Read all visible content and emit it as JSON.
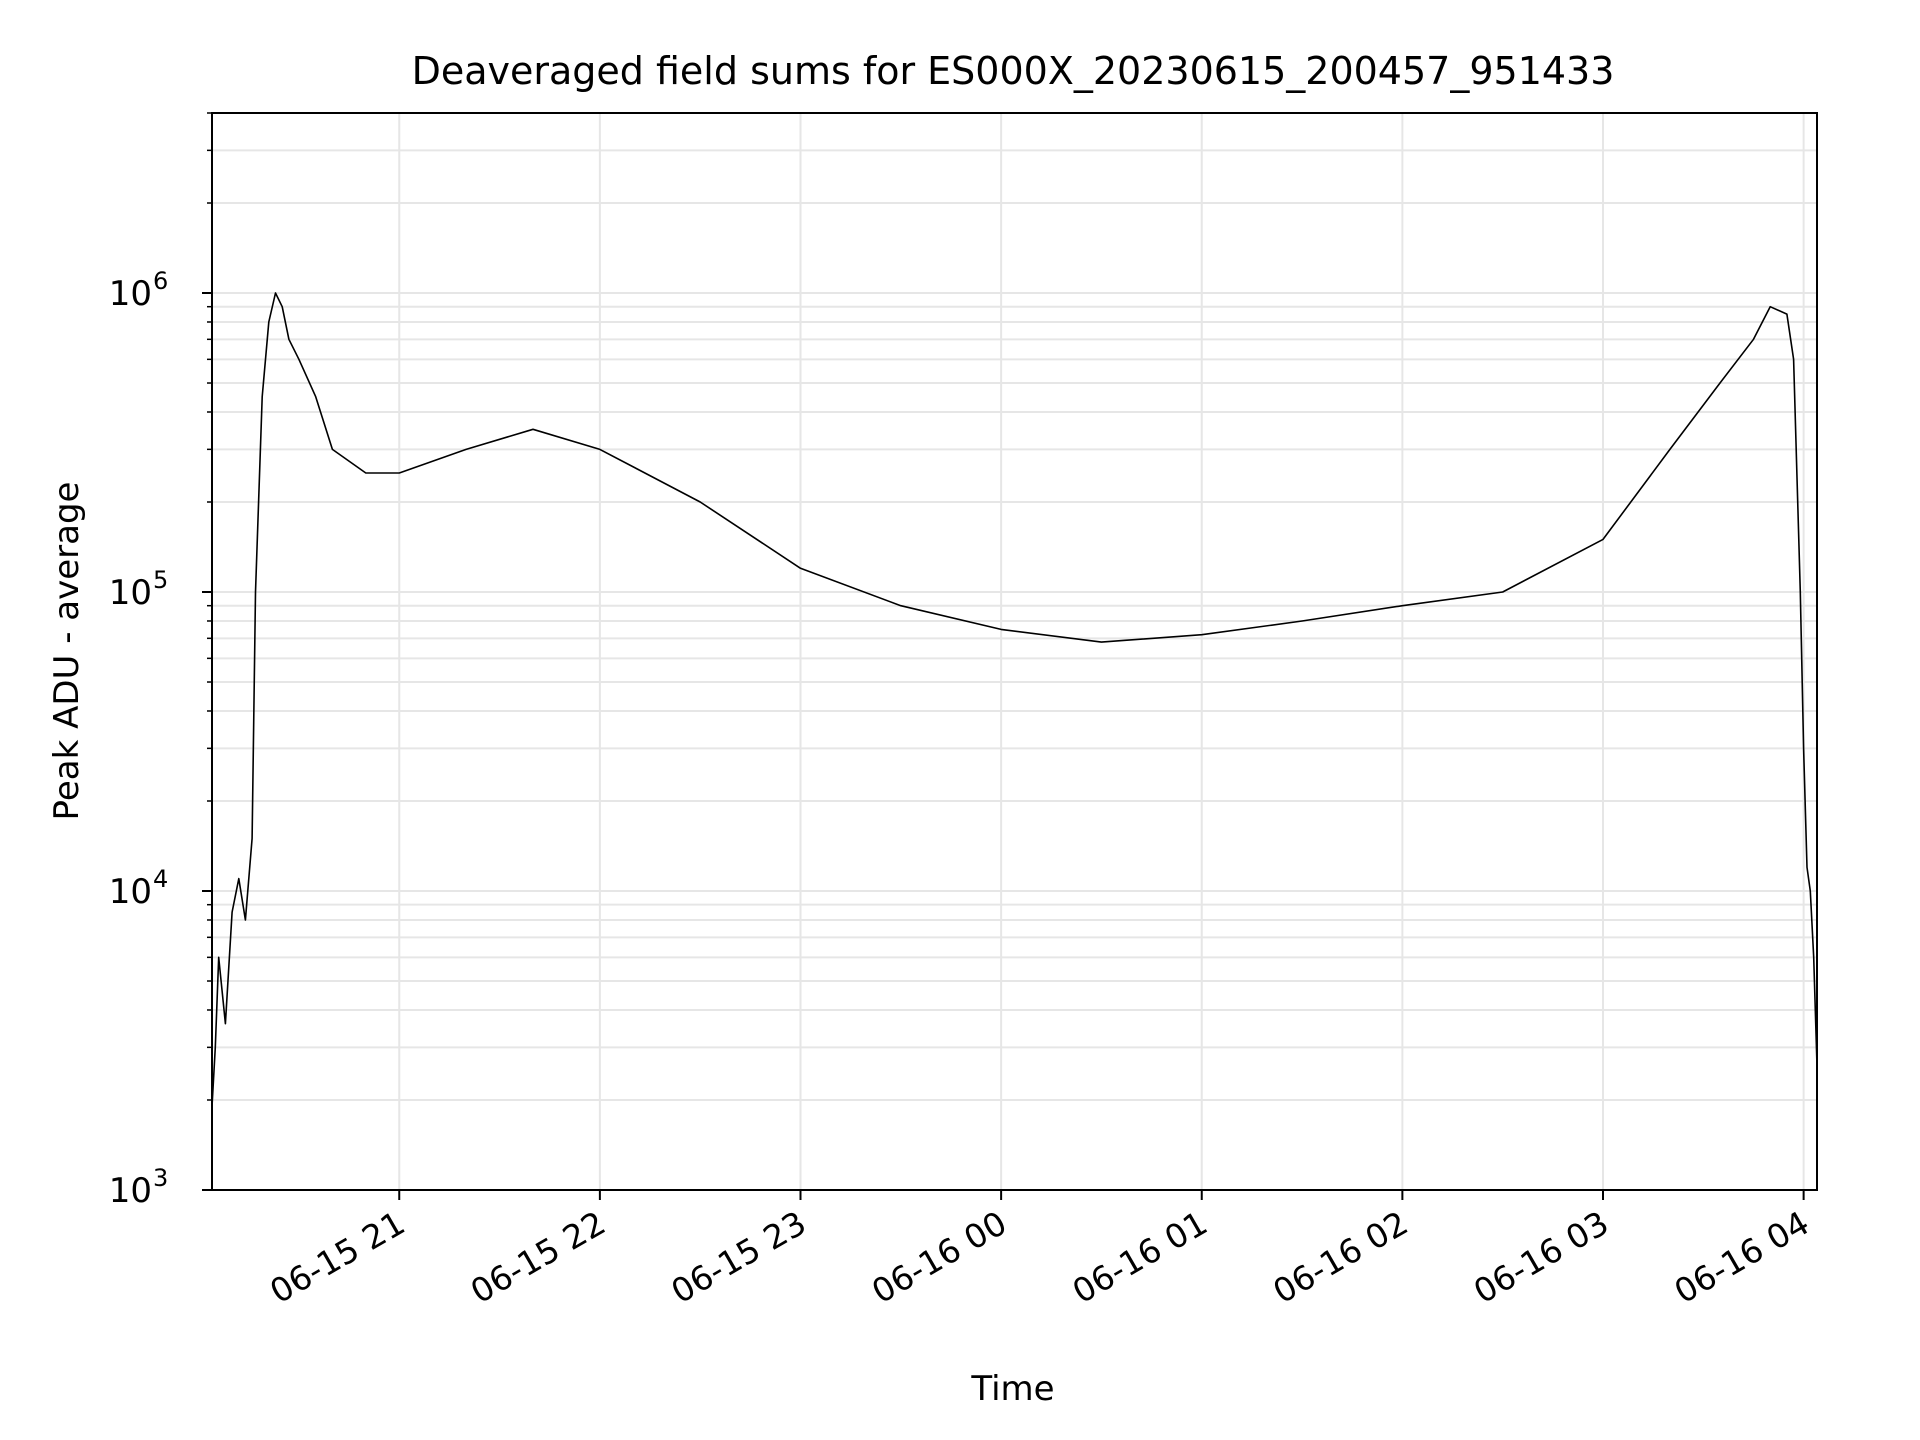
{
  "chart_data": {
    "type": "line",
    "title": "Deaveraged field sums for ES000X_20230615_200457_951433",
    "xlabel": "Time",
    "ylabel": "Peak ADU - average",
    "x_ticks": [
      "06-15 21",
      "06-15 22",
      "06-15 23",
      "06-16 00",
      "06-16 01",
      "06-16 02",
      "06-16 03",
      "06-16 04"
    ],
    "x_tick_times": [
      "2023-06-15 21:00",
      "2023-06-15 22:00",
      "2023-06-15 23:00",
      "2023-06-16 00:00",
      "2023-06-16 01:00",
      "2023-06-16 02:00",
      "2023-06-16 03:00",
      "2023-06-16 04:00"
    ],
    "xlim": [
      "2023-06-15 20:04",
      "2023-06-16 04:04"
    ],
    "y_scale": "log",
    "ylim": [
      1000,
      4000000
    ],
    "y_ticks": [
      1000,
      10000,
      100000,
      1000000
    ],
    "y_tick_labels": [
      "10",
      "10",
      "10",
      "10"
    ],
    "y_tick_exponents": [
      "3",
      "4",
      "5",
      "6"
    ],
    "grid": true,
    "line_color": "#000000",
    "series": [
      {
        "x": [
          "2023-06-15 20:04",
          "2023-06-15 20:05",
          "2023-06-15 20:06",
          "2023-06-15 20:08",
          "2023-06-15 20:10",
          "2023-06-15 20:12",
          "2023-06-15 20:14",
          "2023-06-15 20:16",
          "2023-06-15 20:17",
          "2023-06-15 20:19",
          "2023-06-15 20:21",
          "2023-06-15 20:23",
          "2023-06-15 20:25",
          "2023-06-15 20:27",
          "2023-06-15 20:30",
          "2023-06-15 20:35",
          "2023-06-15 20:40",
          "2023-06-15 20:50",
          "2023-06-15 21:00",
          "2023-06-15 21:20",
          "2023-06-15 21:40",
          "2023-06-15 22:00",
          "2023-06-15 22:30",
          "2023-06-15 23:00",
          "2023-06-15 23:30",
          "2023-06-16 00:00",
          "2023-06-16 00:30",
          "2023-06-16 01:00",
          "2023-06-16 01:30",
          "2023-06-16 02:00",
          "2023-06-16 02:30",
          "2023-06-16 03:00",
          "2023-06-16 03:20",
          "2023-06-16 03:35",
          "2023-06-16 03:45",
          "2023-06-16 03:50",
          "2023-06-16 03:55",
          "2023-06-16 03:57",
          "2023-06-16 03:59",
          "2023-06-16 04:00",
          "2023-06-16 04:01",
          "2023-06-16 04:02",
          "2023-06-16 04:03",
          "2023-06-16 04:04"
        ],
        "y": [
          1900,
          3000,
          6000,
          3600,
          8500,
          11000,
          8000,
          15000,
          100000,
          450000,
          800000,
          1000000,
          900000,
          700000,
          600000,
          450000,
          300000,
          250000,
          250000,
          300000,
          350000,
          300000,
          200000,
          120000,
          90000,
          75000,
          68000,
          72000,
          80000,
          90000,
          100000,
          150000,
          300000,
          500000,
          700000,
          900000,
          850000,
          600000,
          100000,
          30000,
          12000,
          10000,
          6000,
          2600
        ]
      }
    ]
  }
}
